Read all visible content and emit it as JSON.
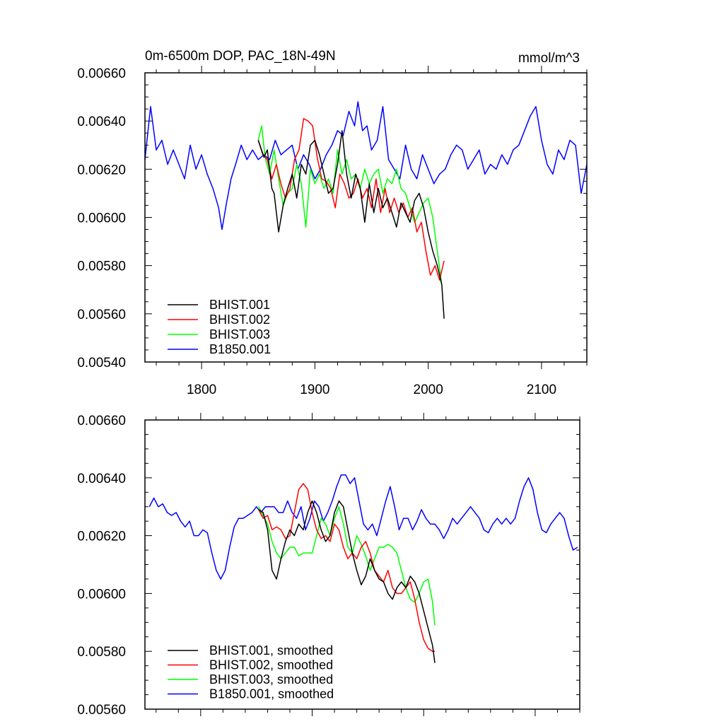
{
  "chart_data": [
    {
      "type": "line",
      "title_left": "0m-6500m DOP, PAC_18N-49N",
      "title_right": "mmol/m^3",
      "xlim": [
        1750,
        2140
      ],
      "ylim": [
        0.0054,
        0.0066
      ],
      "x_ticks": [
        1800,
        1900,
        2000,
        2100
      ],
      "x_tick_labels": [
        "1800",
        "1900",
        "2000",
        "2100"
      ],
      "y_ticks": [
        0.0054,
        0.0056,
        0.0058,
        0.006,
        0.0062,
        0.0064,
        0.0066
      ],
      "y_tick_labels": [
        "0.00540",
        "0.00560",
        "0.00580",
        "0.00600",
        "0.00620",
        "0.00640",
        "0.00660"
      ],
      "legend_position": "bottom-left",
      "series": [
        {
          "name": "BHIST.001",
          "color": "#000000",
          "x": [
            1850,
            1855,
            1858,
            1862,
            1864,
            1868,
            1872,
            1876,
            1880,
            1884,
            1888,
            1892,
            1896,
            1900,
            1904,
            1908,
            1912,
            1916,
            1920,
            1924,
            1928,
            1932,
            1936,
            1940,
            1944,
            1948,
            1952,
            1956,
            1960,
            1964,
            1968,
            1972,
            1976,
            1980,
            1984,
            1988,
            1992,
            1996,
            2000,
            2004,
            2008,
            2012,
            2014
          ],
          "y": [
            0.00632,
            0.00625,
            0.00628,
            0.00612,
            0.0061,
            0.00594,
            0.00605,
            0.00612,
            0.00618,
            0.00608,
            0.00622,
            0.00618,
            0.0063,
            0.00632,
            0.00626,
            0.00618,
            0.0061,
            0.00612,
            0.00622,
            0.00636,
            0.00618,
            0.00608,
            0.00618,
            0.00612,
            0.00598,
            0.00614,
            0.00602,
            0.00612,
            0.00604,
            0.00608,
            0.00602,
            0.00596,
            0.00606,
            0.00602,
            0.00598,
            0.00607,
            0.0061,
            0.00604,
            0.00594,
            0.00586,
            0.0058,
            0.00572,
            0.00558
          ]
        },
        {
          "name": "BHIST.002",
          "color": "#ff0000",
          "x": [
            1850,
            1854,
            1858,
            1862,
            1866,
            1870,
            1874,
            1878,
            1882,
            1886,
            1890,
            1894,
            1898,
            1902,
            1906,
            1910,
            1914,
            1918,
            1922,
            1926,
            1930,
            1934,
            1938,
            1942,
            1946,
            1950,
            1954,
            1958,
            1962,
            1966,
            1970,
            1974,
            1978,
            1982,
            1986,
            1990,
            1994,
            1998,
            2002,
            2006,
            2010,
            2014
          ],
          "y": [
            0.00632,
            0.00626,
            0.00624,
            0.00616,
            0.00622,
            0.00614,
            0.00608,
            0.00612,
            0.00624,
            0.00628,
            0.00641,
            0.0064,
            0.00638,
            0.00625,
            0.00616,
            0.00615,
            0.00612,
            0.00604,
            0.00618,
            0.00614,
            0.00608,
            0.0061,
            0.00616,
            0.00608,
            0.00612,
            0.00604,
            0.00616,
            0.00602,
            0.00612,
            0.00602,
            0.00608,
            0.00602,
            0.00606,
            0.006,
            0.00604,
            0.00594,
            0.00598,
            0.00586,
            0.00576,
            0.0058,
            0.00574,
            0.00582
          ]
        },
        {
          "name": "BHIST.003",
          "color": "#00ff00",
          "x": [
            1850,
            1853,
            1856,
            1860,
            1864,
            1868,
            1872,
            1876,
            1880,
            1884,
            1888,
            1892,
            1896,
            1900,
            1904,
            1908,
            1912,
            1916,
            1920,
            1924,
            1928,
            1932,
            1936,
            1940,
            1944,
            1948,
            1952,
            1956,
            1960,
            1964,
            1968,
            1972,
            1976,
            1980,
            1984,
            1988,
            1992,
            1996,
            2000,
            2004,
            2008,
            2012
          ],
          "y": [
            0.00632,
            0.00638,
            0.00625,
            0.00618,
            0.00628,
            0.00616,
            0.00605,
            0.0061,
            0.00612,
            0.00622,
            0.00614,
            0.00596,
            0.0062,
            0.00614,
            0.00618,
            0.00612,
            0.00616,
            0.0061,
            0.00628,
            0.00618,
            0.00624,
            0.00616,
            0.00618,
            0.00612,
            0.0062,
            0.00614,
            0.00618,
            0.0062,
            0.0061,
            0.00616,
            0.00614,
            0.0062,
            0.00612,
            0.0061,
            0.00604,
            0.00598,
            0.00602,
            0.00606,
            0.00608,
            0.006,
            0.00586,
            0.00572
          ]
        },
        {
          "name": "B1850.001",
          "color": "#0000ff",
          "x": [
            1750,
            1755,
            1760,
            1765,
            1770,
            1775,
            1780,
            1785,
            1790,
            1795,
            1800,
            1805,
            1810,
            1815,
            1818,
            1822,
            1826,
            1830,
            1835,
            1840,
            1845,
            1850,
            1855,
            1860,
            1865,
            1870,
            1875,
            1880,
            1885,
            1890,
            1895,
            1900,
            1905,
            1910,
            1915,
            1920,
            1925,
            1930,
            1935,
            1938,
            1942,
            1946,
            1950,
            1955,
            1960,
            1965,
            1970,
            1975,
            1980,
            1985,
            1990,
            1995,
            2000,
            2005,
            2010,
            2015,
            2020,
            2025,
            2030,
            2035,
            2040,
            2045,
            2050,
            2055,
            2060,
            2065,
            2070,
            2075,
            2080,
            2085,
            2090,
            2095,
            2100,
            2105,
            2110,
            2115,
            2120,
            2125,
            2130,
            2135,
            2140
          ],
          "y": [
            0.00624,
            0.00646,
            0.00628,
            0.00632,
            0.00622,
            0.00628,
            0.00622,
            0.00616,
            0.0063,
            0.0062,
            0.00626,
            0.00618,
            0.00612,
            0.00604,
            0.00595,
            0.00606,
            0.00616,
            0.00622,
            0.0063,
            0.00624,
            0.00628,
            0.00624,
            0.00626,
            0.00624,
            0.00632,
            0.00626,
            0.00628,
            0.0063,
            0.0062,
            0.00626,
            0.00622,
            0.00616,
            0.0062,
            0.00626,
            0.0063,
            0.00636,
            0.00634,
            0.00644,
            0.00638,
            0.00648,
            0.00636,
            0.00638,
            0.00628,
            0.00632,
            0.00646,
            0.00624,
            0.0062,
            0.00616,
            0.0063,
            0.0062,
            0.00616,
            0.00626,
            0.0062,
            0.00614,
            0.00618,
            0.0062,
            0.00626,
            0.0063,
            0.00628,
            0.0062,
            0.00624,
            0.00628,
            0.00618,
            0.00622,
            0.0062,
            0.00626,
            0.00622,
            0.00628,
            0.0063,
            0.00636,
            0.00642,
            0.00646,
            0.00632,
            0.00622,
            0.00618,
            0.00628,
            0.00624,
            0.00632,
            0.0063,
            0.0061,
            0.00622
          ]
        }
      ]
    },
    {
      "type": "line",
      "xlim": [
        1750,
        2140
      ],
      "ylim": [
        0.0056,
        0.0066
      ],
      "x_ticks": [
        1800,
        1900,
        2000,
        2100
      ],
      "y_ticks": [
        0.0056,
        0.0058,
        0.006,
        0.0062,
        0.0064,
        0.0066
      ],
      "y_tick_labels": [
        "0.00560",
        "0.00580",
        "0.00600",
        "0.00620",
        "0.00640",
        "0.00660"
      ],
      "legend_position": "bottom-left",
      "series": [
        {
          "name": "BHIST.001, smoothed",
          "color": "#000000",
          "x": [
            1852,
            1856,
            1860,
            1864,
            1868,
            1872,
            1876,
            1880,
            1884,
            1888,
            1892,
            1896,
            1900,
            1904,
            1908,
            1912,
            1916,
            1920,
            1924,
            1928,
            1932,
            1936,
            1940,
            1944,
            1948,
            1952,
            1956,
            1960,
            1964,
            1968,
            1972,
            1976,
            1980,
            1984,
            1988,
            1992,
            1996,
            2000,
            2004,
            2008,
            2010
          ],
          "y": [
            0.00629,
            0.00628,
            0.00622,
            0.00608,
            0.00605,
            0.00612,
            0.00618,
            0.00622,
            0.0062,
            0.00624,
            0.00622,
            0.00628,
            0.00632,
            0.00628,
            0.00622,
            0.00618,
            0.0062,
            0.00628,
            0.00632,
            0.0063,
            0.00622,
            0.00614,
            0.00608,
            0.00603,
            0.00606,
            0.00612,
            0.00608,
            0.00605,
            0.00604,
            0.006,
            0.00598,
            0.00602,
            0.00604,
            0.00602,
            0.00606,
            0.00604,
            0.006,
            0.00594,
            0.00588,
            0.00582,
            0.00576
          ]
        },
        {
          "name": "BHIST.002, smoothed",
          "color": "#ff0000",
          "x": [
            1852,
            1856,
            1860,
            1864,
            1868,
            1872,
            1876,
            1880,
            1884,
            1888,
            1892,
            1896,
            1900,
            1904,
            1908,
            1912,
            1916,
            1920,
            1924,
            1928,
            1932,
            1936,
            1940,
            1944,
            1948,
            1952,
            1956,
            1960,
            1964,
            1968,
            1972,
            1976,
            1980,
            1984,
            1988,
            1992,
            1996,
            2000,
            2004,
            2008,
            2010
          ],
          "y": [
            0.00629,
            0.00626,
            0.00627,
            0.00622,
            0.00623,
            0.00622,
            0.00619,
            0.0062,
            0.00628,
            0.00636,
            0.00638,
            0.00636,
            0.00628,
            0.00622,
            0.00619,
            0.0062,
            0.00618,
            0.00624,
            0.00622,
            0.00616,
            0.00612,
            0.00614,
            0.00612,
            0.00616,
            0.00618,
            0.00614,
            0.00608,
            0.00606,
            0.00604,
            0.00608,
            0.00602,
            0.006,
            0.006,
            0.00602,
            0.00604,
            0.00598,
            0.0059,
            0.00584,
            0.00581,
            0.0058,
            0.0058
          ]
        },
        {
          "name": "BHIST.003, smoothed",
          "color": "#00ff00",
          "x": [
            1852,
            1856,
            1860,
            1864,
            1868,
            1872,
            1876,
            1880,
            1884,
            1888,
            1892,
            1896,
            1900,
            1904,
            1908,
            1912,
            1916,
            1920,
            1924,
            1928,
            1932,
            1936,
            1940,
            1944,
            1948,
            1952,
            1956,
            1960,
            1964,
            1968,
            1972,
            1976,
            1980,
            1984,
            1988,
            1992,
            1996,
            2000,
            2004,
            2008,
            2010
          ],
          "y": [
            0.0063,
            0.00627,
            0.00624,
            0.00618,
            0.00614,
            0.00612,
            0.00614,
            0.00616,
            0.00616,
            0.00613,
            0.00614,
            0.00614,
            0.00614,
            0.0062,
            0.00626,
            0.00624,
            0.0062,
            0.00626,
            0.0063,
            0.00624,
            0.00616,
            0.00614,
            0.0062,
            0.00617,
            0.00613,
            0.00608,
            0.00612,
            0.00616,
            0.00616,
            0.00617,
            0.00616,
            0.00614,
            0.00608,
            0.00602,
            0.00598,
            0.00597,
            0.006,
            0.00604,
            0.00605,
            0.00597,
            0.00589
          ]
        },
        {
          "name": "B1850.001, smoothed",
          "color": "#0000ff",
          "x": [
            1754,
            1758,
            1762,
            1766,
            1770,
            1774,
            1778,
            1782,
            1786,
            1790,
            1794,
            1798,
            1802,
            1806,
            1810,
            1814,
            1818,
            1822,
            1826,
            1830,
            1834,
            1838,
            1842,
            1846,
            1850,
            1854,
            1858,
            1862,
            1866,
            1870,
            1874,
            1878,
            1882,
            1886,
            1890,
            1894,
            1898,
            1902,
            1906,
            1910,
            1914,
            1918,
            1922,
            1926,
            1930,
            1934,
            1938,
            1942,
            1946,
            1950,
            1954,
            1958,
            1962,
            1966,
            1970,
            1974,
            1978,
            1982,
            1986,
            1990,
            1994,
            1998,
            2002,
            2006,
            2010,
            2014,
            2018,
            2022,
            2026,
            2030,
            2034,
            2038,
            2042,
            2046,
            2050,
            2054,
            2058,
            2062,
            2066,
            2070,
            2074,
            2078,
            2082,
            2086,
            2090,
            2094,
            2098,
            2102,
            2106,
            2110,
            2114,
            2118,
            2122,
            2126,
            2130,
            2134,
            2138
          ],
          "y": [
            0.0063,
            0.00633,
            0.0063,
            0.00631,
            0.00628,
            0.00627,
            0.00628,
            0.00625,
            0.00623,
            0.00625,
            0.0062,
            0.0062,
            0.00622,
            0.00621,
            0.00614,
            0.00608,
            0.00605,
            0.00608,
            0.00616,
            0.00623,
            0.00626,
            0.00626,
            0.00627,
            0.00628,
            0.0063,
            0.00628,
            0.0063,
            0.0063,
            0.0063,
            0.00628,
            0.00628,
            0.00632,
            0.00628,
            0.00626,
            0.0063,
            0.00622,
            0.00626,
            0.00632,
            0.0063,
            0.00625,
            0.00628,
            0.00632,
            0.00637,
            0.00641,
            0.00641,
            0.00638,
            0.0064,
            0.00632,
            0.00624,
            0.00622,
            0.00624,
            0.0062,
            0.00626,
            0.00632,
            0.00637,
            0.0063,
            0.00622,
            0.00626,
            0.00626,
            0.00622,
            0.00625,
            0.00629,
            0.00626,
            0.00624,
            0.00624,
            0.00622,
            0.00619,
            0.00622,
            0.00626,
            0.00624,
            0.00626,
            0.00628,
            0.0063,
            0.00628,
            0.00626,
            0.00622,
            0.00621,
            0.00624,
            0.00626,
            0.00624,
            0.00626,
            0.00624,
            0.00626,
            0.00632,
            0.00637,
            0.0064,
            0.00636,
            0.00628,
            0.00622,
            0.00621,
            0.00624,
            0.00626,
            0.00628,
            0.00626,
            0.0062,
            0.00615,
            0.00616
          ]
        }
      ]
    }
  ]
}
